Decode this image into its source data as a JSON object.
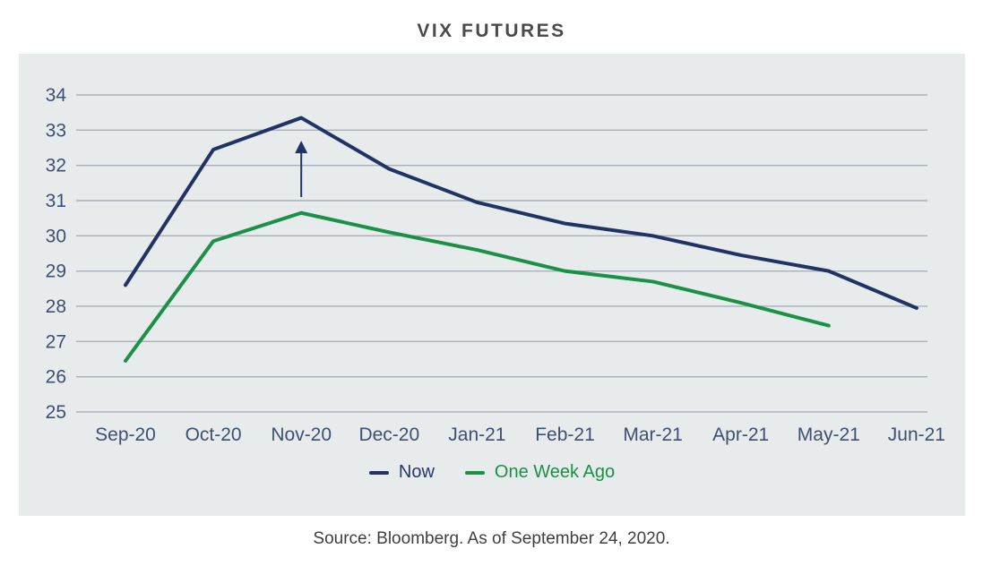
{
  "title": "VIX FUTURES",
  "source_note": "Source: Bloomberg. As of September 24, 2020.",
  "colors": {
    "panel_bg": "#e8ebec",
    "gridline": "#a9afb8",
    "axis_text": "#3e4f72",
    "title_text": "#4a4a4c",
    "source_text": "#3f3f41",
    "now_line": "#203364",
    "one_week_ago_line": "#1b9047"
  },
  "chart_data": {
    "type": "line",
    "title": "VIX FUTURES",
    "categories": [
      "Sep-20",
      "Oct-20",
      "Nov-20",
      "Dec-20",
      "Jan-21",
      "Feb-21",
      "Mar-21",
      "Apr-21",
      "May-21",
      "Jun-21"
    ],
    "series": [
      {
        "name": "Now",
        "color": "#203364",
        "values": [
          28.6,
          32.45,
          33.35,
          31.9,
          30.95,
          30.35,
          30.0,
          29.45,
          29.0,
          27.95
        ]
      },
      {
        "name": "One Week Ago",
        "color": "#1b9047",
        "values": [
          26.45,
          29.85,
          30.65,
          30.1,
          29.6,
          29.0,
          28.7,
          28.1,
          27.45,
          null
        ]
      }
    ],
    "ylim": [
      25,
      34
    ],
    "yticks": [
      34,
      33,
      32,
      31,
      30,
      29,
      28,
      27,
      26,
      25
    ],
    "grid": "horizontal",
    "legend_position": "bottom",
    "annotation": {
      "type": "up-arrow",
      "x_category": "Nov-20",
      "y_from": 31.1,
      "y_to": 32.7
    }
  }
}
